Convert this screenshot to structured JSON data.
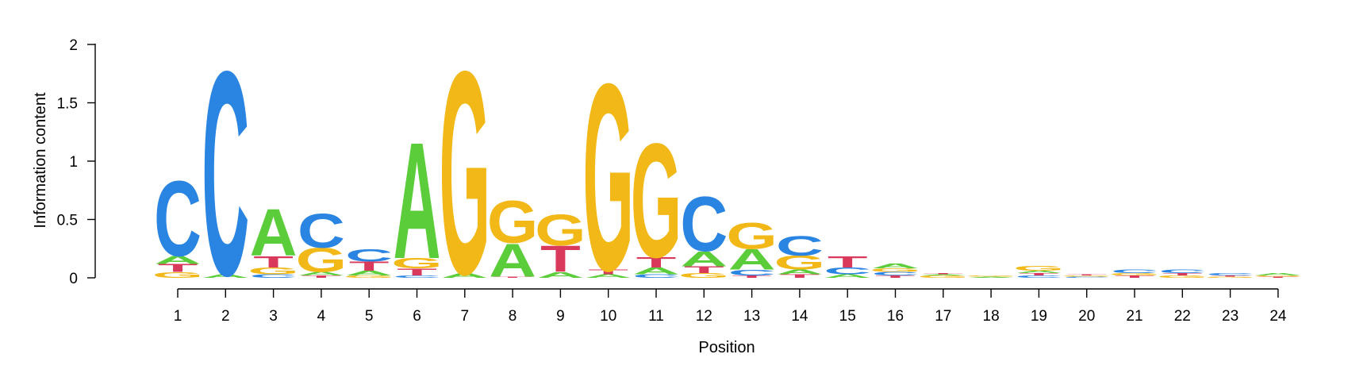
{
  "chart_data": {
    "type": "sequence-logo",
    "xlabel": "Position",
    "ylabel": "Information content",
    "ylim": [
      0,
      2
    ],
    "yticks": [
      "0",
      "0.5",
      "1",
      "1.5",
      "2"
    ],
    "yticks_values": [
      0,
      0.5,
      1,
      1.5,
      2
    ],
    "colors": {
      "A": "#5ccd3a",
      "C": "#2a84e2",
      "G": "#f2b817",
      "T": "#d93a5c"
    },
    "positions": [
      {
        "label": "1",
        "stack": [
          [
            "G",
            0.05
          ],
          [
            "T",
            0.07
          ],
          [
            "A",
            0.07
          ],
          [
            "C",
            0.66
          ]
        ]
      },
      {
        "label": "2",
        "stack": [
          [
            "A",
            0.03
          ],
          [
            "C",
            1.79
          ]
        ]
      },
      {
        "label": "3",
        "stack": [
          [
            "C",
            0.03
          ],
          [
            "G",
            0.06
          ],
          [
            "T",
            0.1
          ],
          [
            "A",
            0.41
          ]
        ]
      },
      {
        "label": "4",
        "stack": [
          [
            "T",
            0.02
          ],
          [
            "A",
            0.03
          ],
          [
            "G",
            0.21
          ],
          [
            "C",
            0.3
          ]
        ]
      },
      {
        "label": "5",
        "stack": [
          [
            "G",
            0.02
          ],
          [
            "A",
            0.04
          ],
          [
            "T",
            0.08
          ],
          [
            "C",
            0.11
          ]
        ]
      },
      {
        "label": "6",
        "stack": [
          [
            "C",
            0.02
          ],
          [
            "T",
            0.06
          ],
          [
            "G",
            0.09
          ],
          [
            "A",
            1.02
          ]
        ]
      },
      {
        "label": "7",
        "stack": [
          [
            "A",
            0.04
          ],
          [
            "G",
            1.78
          ]
        ]
      },
      {
        "label": "8",
        "stack": [
          [
            "T",
            0.01
          ],
          [
            "A",
            0.29
          ],
          [
            "G",
            0.37
          ]
        ]
      },
      {
        "label": "9",
        "stack": [
          [
            "A",
            0.05
          ],
          [
            "T",
            0.23
          ],
          [
            "G",
            0.27
          ]
        ]
      },
      {
        "label": "10",
        "stack": [
          [
            "A",
            0.03
          ],
          [
            "T",
            0.04
          ],
          [
            "G",
            1.64
          ]
        ]
      },
      {
        "label": "11",
        "stack": [
          [
            "C",
            0.03
          ],
          [
            "A",
            0.06
          ],
          [
            "T",
            0.09
          ],
          [
            "G",
            1.0
          ]
        ]
      },
      {
        "label": "12",
        "stack": [
          [
            "G",
            0.04
          ],
          [
            "T",
            0.06
          ],
          [
            "A",
            0.13
          ],
          [
            "C",
            0.48
          ]
        ]
      },
      {
        "label": "13",
        "stack": [
          [
            "T",
            0.02
          ],
          [
            "C",
            0.05
          ],
          [
            "A",
            0.18
          ],
          [
            "G",
            0.23
          ]
        ]
      },
      {
        "label": "14",
        "stack": [
          [
            "T",
            0.03
          ],
          [
            "A",
            0.04
          ],
          [
            "G",
            0.12
          ],
          [
            "C",
            0.17
          ]
        ]
      },
      {
        "label": "15",
        "stack": [
          [
            "A",
            0.03
          ],
          [
            "C",
            0.06
          ],
          [
            "T",
            0.1
          ]
        ]
      },
      {
        "label": "16",
        "stack": [
          [
            "T",
            0.02
          ],
          [
            "C",
            0.03
          ],
          [
            "G",
            0.03
          ],
          [
            "A",
            0.04
          ]
        ]
      },
      {
        "label": "17",
        "stack": [
          [
            "G",
            0.02
          ],
          [
            "A",
            0.01
          ],
          [
            "T",
            0.01
          ]
        ]
      },
      {
        "label": "18",
        "stack": [
          [
            "A",
            0.01
          ],
          [
            "G",
            0.01
          ]
        ]
      },
      {
        "label": "19",
        "stack": [
          [
            "C",
            0.02
          ],
          [
            "T",
            0.02
          ],
          [
            "A",
            0.02
          ],
          [
            "G",
            0.04
          ]
        ]
      },
      {
        "label": "20",
        "stack": [
          [
            "C",
            0.01
          ],
          [
            "G",
            0.01
          ],
          [
            "T",
            0.01
          ]
        ]
      },
      {
        "label": "21",
        "stack": [
          [
            "T",
            0.02
          ],
          [
            "G",
            0.02
          ],
          [
            "C",
            0.03
          ]
        ]
      },
      {
        "label": "22",
        "stack": [
          [
            "G",
            0.02
          ],
          [
            "T",
            0.02
          ],
          [
            "C",
            0.03
          ]
        ]
      },
      {
        "label": "23",
        "stack": [
          [
            "G",
            0.01
          ],
          [
            "T",
            0.01
          ],
          [
            "C",
            0.02
          ]
        ]
      },
      {
        "label": "24",
        "stack": [
          [
            "T",
            0.01
          ],
          [
            "G",
            0.01
          ],
          [
            "A",
            0.02
          ]
        ]
      }
    ]
  }
}
